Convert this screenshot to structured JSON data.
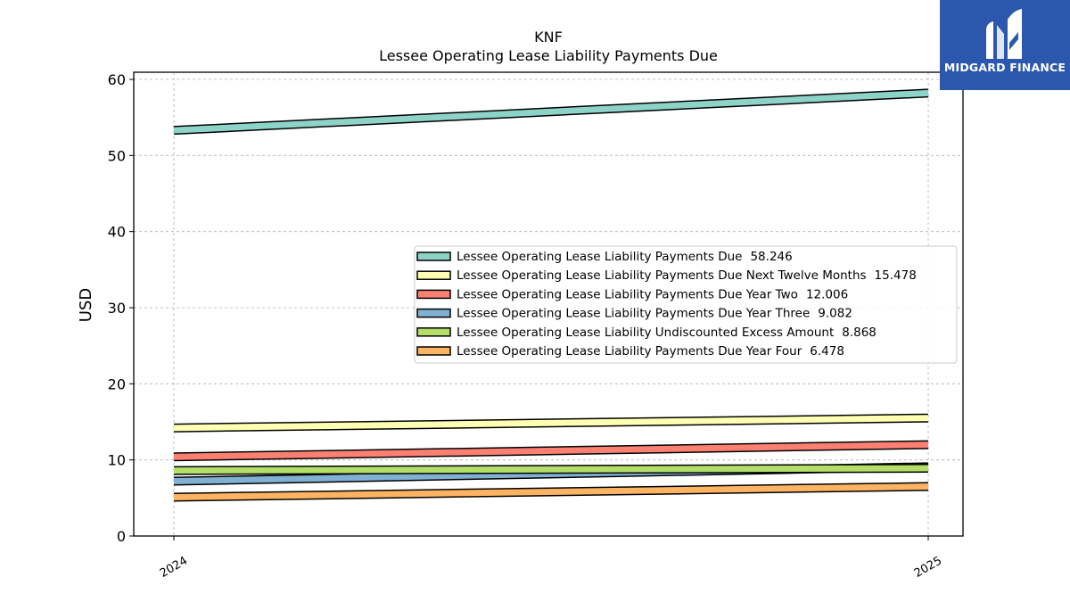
{
  "chart_data": {
    "type": "line",
    "title": "KNF",
    "subtitle": "Lessee Operating Lease Liability Payments Due",
    "xlabel": "",
    "ylabel": "USD",
    "x": [
      "2024",
      "2025"
    ],
    "ylim": [
      0,
      60
    ],
    "yticks": [
      0,
      10,
      20,
      30,
      40,
      50,
      60
    ],
    "grid": true,
    "legend_position": "center-right",
    "series": [
      {
        "name": "Lessee Operating Lease Liability Payments Due",
        "legend_value": "58.246",
        "values": [
          53.3,
          58.2
        ],
        "color": "#8dd3c7"
      },
      {
        "name": "Lessee Operating Lease Liability Payments Due Next Twelve Months",
        "legend_value": "15.478",
        "values": [
          14.2,
          15.5
        ],
        "color": "#ffffb3"
      },
      {
        "name": "Lessee Operating Lease Liability Payments Due Year Two",
        "legend_value": "12.006",
        "values": [
          10.4,
          12.0
        ],
        "color": "#fb8072"
      },
      {
        "name": "Lessee Operating Lease Liability Payments Due Year Three",
        "legend_value": "9.082",
        "values": [
          7.2,
          9.1
        ],
        "color": "#80b1d3"
      },
      {
        "name": "Lessee Operating Lease Liability Undiscounted Excess Amount",
        "legend_value": "8.868",
        "values": [
          8.6,
          8.9
        ],
        "color": "#b3de69"
      },
      {
        "name": "Lessee Operating Lease Liability Payments Due Year Four",
        "legend_value": "6.478",
        "values": [
          5.1,
          6.5
        ],
        "color": "#fdb462"
      }
    ]
  },
  "logo": {
    "text": "MIDGARD FINANCE",
    "background": "#2b58ad"
  }
}
